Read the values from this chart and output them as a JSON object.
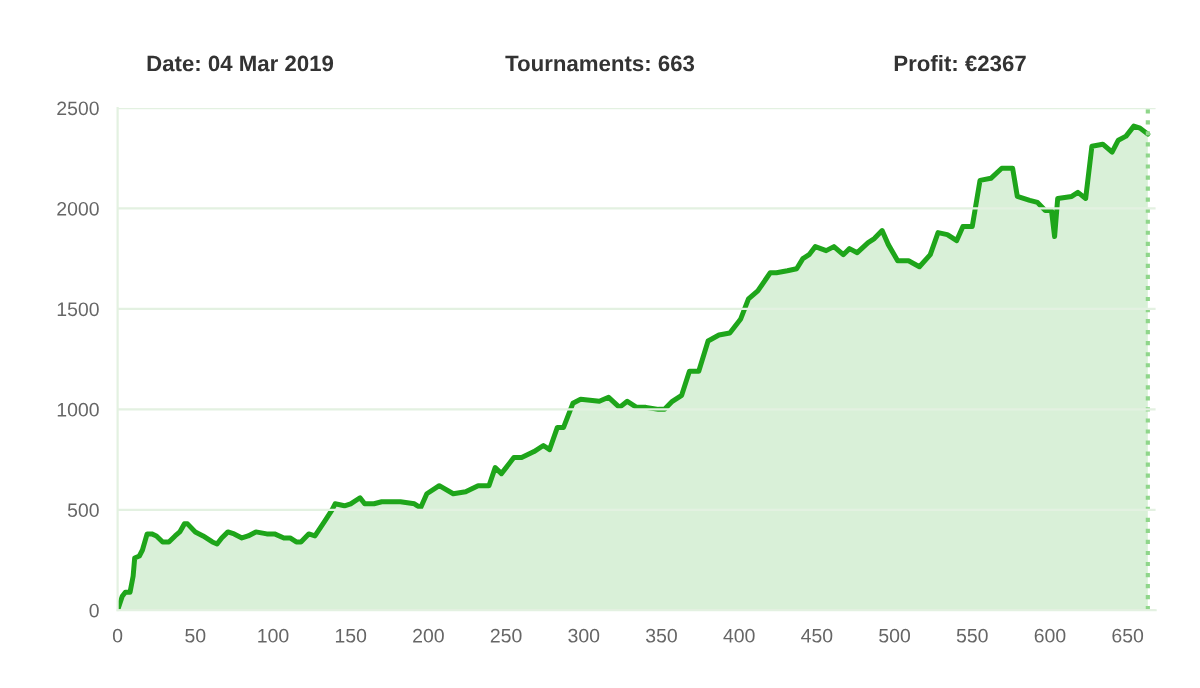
{
  "chart_data": {
    "type": "area",
    "annotations": [
      "Date: 04 Mar 2019",
      "Tournaments: 663",
      "Profit: €2367"
    ],
    "series": [
      {
        "color": "#1ea51a",
        "x": [
          0,
          3,
          5,
          8,
          10,
          11,
          14,
          16,
          19,
          22,
          25,
          29,
          33,
          37,
          40,
          43,
          45,
          50,
          55,
          61,
          64,
          67,
          71,
          75,
          80,
          84,
          89,
          96,
          101,
          107,
          111,
          115,
          118,
          123,
          127,
          133,
          138,
          140,
          146,
          150,
          156,
          159,
          165,
          170,
          182,
          191,
          195,
          199,
          207,
          216,
          224,
          232,
          239,
          243,
          247,
          255,
          260,
          268,
          274,
          278,
          283,
          287,
          293,
          298,
          310,
          316,
          323,
          328,
          334,
          340,
          348,
          352,
          357,
          363,
          368,
          374,
          380,
          387,
          394,
          401,
          406,
          412,
          420,
          424,
          431,
          437,
          441,
          445,
          449,
          456,
          461,
          467,
          471,
          476,
          483,
          487,
          492,
          496,
          502,
          509,
          516,
          523,
          528,
          534,
          540,
          544,
          550,
          555,
          562,
          569,
          576,
          579,
          587,
          592,
          597,
          601,
          603,
          605,
          614,
          618,
          623,
          627,
          634,
          640,
          644,
          649,
          654,
          658,
          663
        ],
        "values": [
          0,
          70,
          90,
          90,
          170,
          260,
          270,
          300,
          380,
          380,
          370,
          340,
          340,
          370,
          390,
          430,
          430,
          390,
          370,
          340,
          330,
          360,
          390,
          380,
          360,
          370,
          390,
          380,
          380,
          360,
          360,
          340,
          340,
          380,
          370,
          440,
          500,
          530,
          520,
          530,
          560,
          530,
          530,
          540,
          540,
          530,
          510,
          580,
          620,
          580,
          590,
          620,
          620,
          710,
          680,
          760,
          760,
          790,
          820,
          800,
          910,
          910,
          1030,
          1050,
          1040,
          1060,
          1010,
          1040,
          1010,
          1010,
          1000,
          1000,
          1040,
          1070,
          1190,
          1190,
          1340,
          1370,
          1380,
          1450,
          1550,
          1590,
          1680,
          1680,
          1690,
          1700,
          1750,
          1770,
          1810,
          1790,
          1810,
          1770,
          1800,
          1780,
          1830,
          1850,
          1890,
          1820,
          1740,
          1740,
          1710,
          1770,
          1880,
          1870,
          1840,
          1910,
          1910,
          2140,
          2150,
          2200,
          2200,
          2060,
          2040,
          2030,
          1990,
          1990,
          1860,
          2050,
          2060,
          2080,
          2050,
          2310,
          2320,
          2280,
          2340,
          2360,
          2410,
          2400,
          2370
        ]
      }
    ],
    "xlim": [
      0,
      668
    ],
    "xticks": [
      0,
      50,
      100,
      150,
      200,
      250,
      300,
      350,
      400,
      450,
      500,
      550,
      600,
      650
    ],
    "ylim": [
      0,
      2500
    ],
    "yticks": [
      0,
      500,
      1000,
      1500,
      2000,
      2500
    ],
    "grid": "y",
    "ref_lines": [
      {
        "axis": "x",
        "value": 663,
        "color": "#8fd68a",
        "line_style": "dotted"
      }
    ]
  }
}
